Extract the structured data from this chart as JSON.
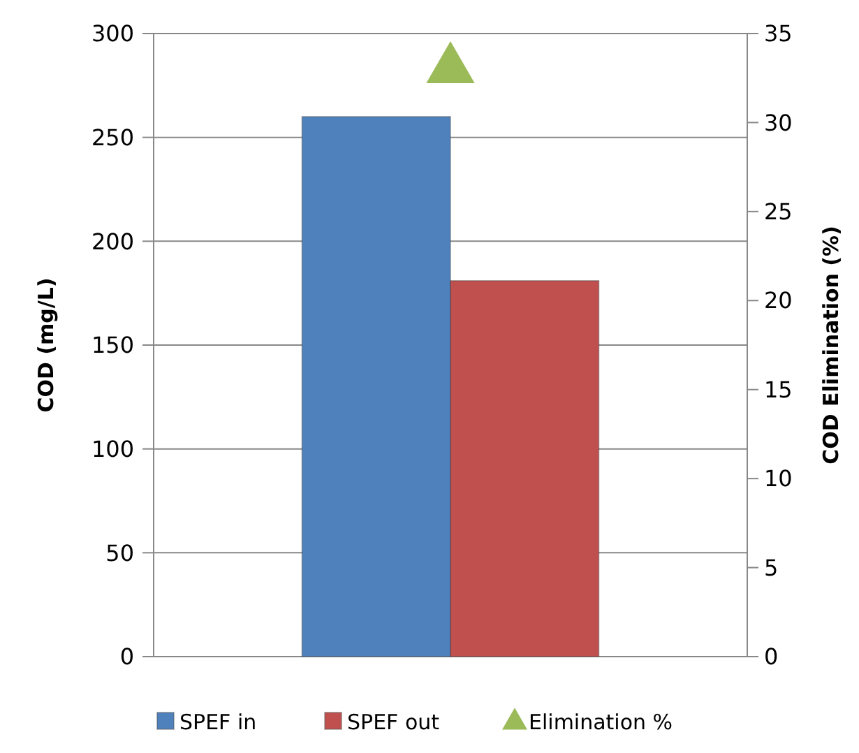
{
  "chart_data": {
    "type": "bar",
    "categories": [
      null
    ],
    "series": [
      {
        "name": "SPEF in",
        "color": "#4f81bd",
        "values": [
          260
        ]
      },
      {
        "name": "SPEF out",
        "color": "#c0504d",
        "values": [
          181
        ]
      },
      {
        "name": "Elimination %",
        "type": "scatter",
        "color": "#9bbb59",
        "values": [
          33
        ],
        "axis": "y2",
        "marker": "triangle"
      }
    ],
    "ylabel": "COD (mg/L)",
    "y2label": "COD Elimination (%)",
    "ylim": [
      0,
      300
    ],
    "yticks": [
      0,
      50,
      100,
      150,
      200,
      250,
      300
    ],
    "y2lim": [
      0,
      35
    ],
    "y2ticks": [
      0,
      5,
      10,
      15,
      20,
      25,
      30,
      35
    ],
    "grid": "y",
    "legend": "bottom"
  }
}
